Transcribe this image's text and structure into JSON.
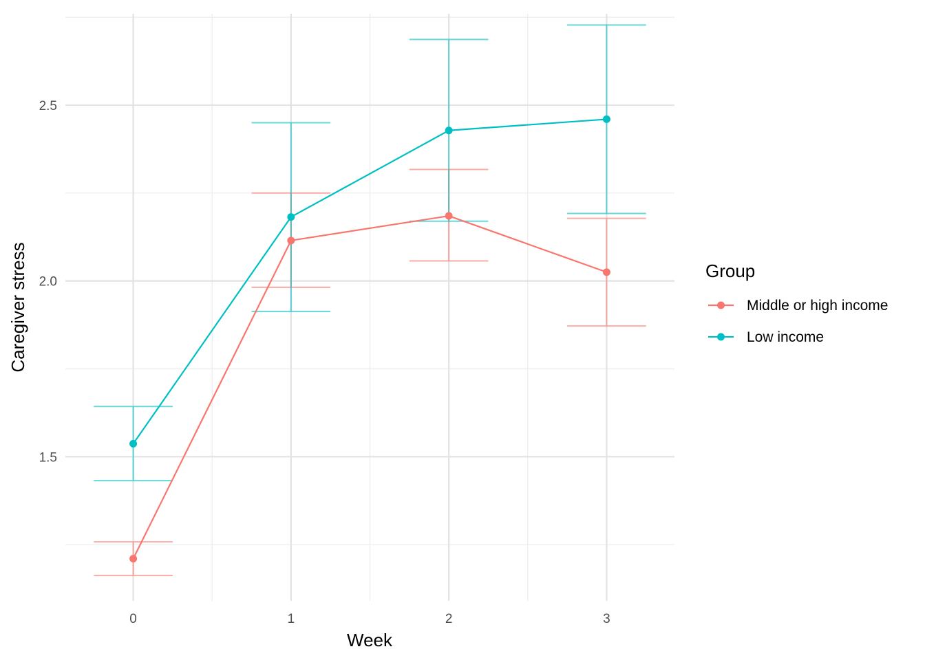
{
  "chart_data": {
    "type": "line",
    "xlabel": "Week",
    "ylabel": "Caregiver stress",
    "x": [
      0,
      1,
      2,
      3
    ],
    "xlim": [
      -0.43,
      3.43
    ],
    "ylim": [
      1.09,
      2.76
    ],
    "x_ticks": [
      0,
      1,
      2,
      3
    ],
    "x_tick_labels": [
      "0",
      "1",
      "2",
      "3"
    ],
    "y_ticks": [
      1.5,
      2.0,
      2.5
    ],
    "y_tick_labels": [
      "1.5",
      "2.0",
      "2.5"
    ],
    "grid": true,
    "legend": {
      "title": "Group",
      "position": "right"
    },
    "series": [
      {
        "name": "Middle or high income",
        "color": "#F8766D",
        "values": [
          1.21,
          2.115,
          2.185,
          2.025
        ],
        "lower": [
          1.162,
          1.982,
          2.057,
          1.872
        ],
        "upper": [
          1.258,
          2.25,
          2.317,
          2.178
        ]
      },
      {
        "name": "Low income",
        "color": "#00BFC4",
        "values": [
          1.537,
          2.182,
          2.428,
          2.46
        ],
        "lower": [
          1.432,
          1.913,
          2.17,
          2.192
        ],
        "upper": [
          1.643,
          2.45,
          2.687,
          2.728
        ]
      }
    ]
  }
}
